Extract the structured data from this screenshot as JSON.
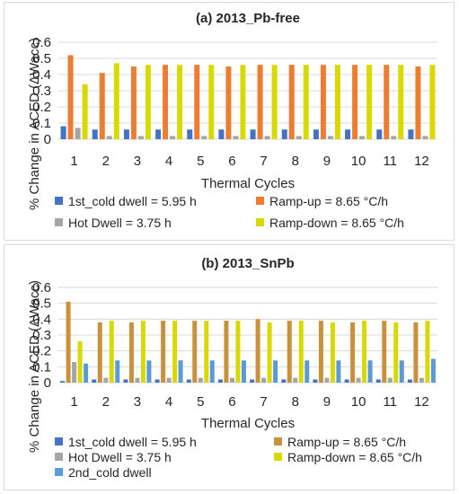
{
  "chart_data": [
    {
      "panel": "a",
      "type": "bar",
      "title": "(a) 2013_Pb-free",
      "xlabel": "Thermal Cycles",
      "ylabel": "% Change in ACED (ΔWacc)",
      "ylim": [
        0,
        0.6
      ],
      "yticks": [
        "0",
        "0.1",
        "0.2",
        "0.3",
        "0.4",
        "0.5",
        "0.6"
      ],
      "categories": [
        "1",
        "2",
        "3",
        "4",
        "5",
        "6",
        "7",
        "8",
        "9",
        "10",
        "11",
        "12"
      ],
      "grid": true,
      "legend_position": "bottom",
      "series": [
        {
          "name": "1st_cold dwell = 5.95 h",
          "color": "#4472c4",
          "values": [
            0.08,
            0.06,
            0.06,
            0.06,
            0.06,
            0.06,
            0.06,
            0.06,
            0.06,
            0.06,
            0.06,
            0.06
          ]
        },
        {
          "name": "Ramp-up = 8.65 °C/h",
          "color": "#ed7d31",
          "values": [
            0.52,
            0.41,
            0.45,
            0.46,
            0.46,
            0.45,
            0.46,
            0.46,
            0.46,
            0.46,
            0.46,
            0.45
          ]
        },
        {
          "name": "Hot Dwell = 3.75 h",
          "color": "#a5a5a5",
          "values": [
            0.07,
            0.02,
            0.02,
            0.02,
            0.02,
            0.02,
            0.02,
            0.02,
            0.02,
            0.02,
            0.02,
            0.02
          ]
        },
        {
          "name": "Ramp-down = 8.65 °C/h",
          "color": "#d9d900",
          "values": [
            0.34,
            0.47,
            0.46,
            0.46,
            0.46,
            0.46,
            0.46,
            0.46,
            0.46,
            0.46,
            0.46,
            0.46
          ]
        }
      ]
    },
    {
      "panel": "b",
      "type": "bar",
      "title": "(b) 2013_SnPb",
      "xlabel": "Thermal Cycles",
      "ylabel": "% Change in ACED (ΔWacc)",
      "ylim": [
        0,
        0.6
      ],
      "yticks": [
        "0",
        "0.1",
        "0.2",
        "0.3",
        "0.4",
        "0.5",
        "0.6"
      ],
      "categories": [
        "1",
        "2",
        "3",
        "4",
        "5",
        "6",
        "7",
        "8",
        "9",
        "10",
        "11",
        "12"
      ],
      "grid": true,
      "legend_position": "bottom",
      "series": [
        {
          "name": "1st_cold dwell = 5.95 h",
          "color": "#4472c4",
          "values": [
            0.01,
            0.02,
            0.02,
            0.02,
            0.02,
            0.02,
            0.02,
            0.02,
            0.02,
            0.02,
            0.02,
            0.02
          ]
        },
        {
          "name": "Ramp-up = 8.65 °C/h",
          "color": "#c8913a",
          "values": [
            0.51,
            0.38,
            0.38,
            0.39,
            0.39,
            0.39,
            0.4,
            0.39,
            0.39,
            0.38,
            0.39,
            0.38
          ]
        },
        {
          "name": "Hot Dwell = 3.75 h",
          "color": "#a5a5a5",
          "values": [
            0.13,
            0.03,
            0.03,
            0.03,
            0.03,
            0.03,
            0.03,
            0.03,
            0.03,
            0.03,
            0.03,
            0.03
          ]
        },
        {
          "name": "Ramp-down = 8.65 °C/h",
          "color": "#d9d900",
          "values": [
            0.26,
            0.39,
            0.39,
            0.39,
            0.39,
            0.39,
            0.38,
            0.39,
            0.38,
            0.39,
            0.38,
            0.39
          ]
        },
        {
          "name": "2nd_cold dwell",
          "color": "#5b9bd5",
          "values": [
            0.12,
            0.14,
            0.14,
            0.14,
            0.14,
            0.14,
            0.14,
            0.14,
            0.14,
            0.14,
            0.14,
            0.15
          ]
        }
      ]
    }
  ]
}
